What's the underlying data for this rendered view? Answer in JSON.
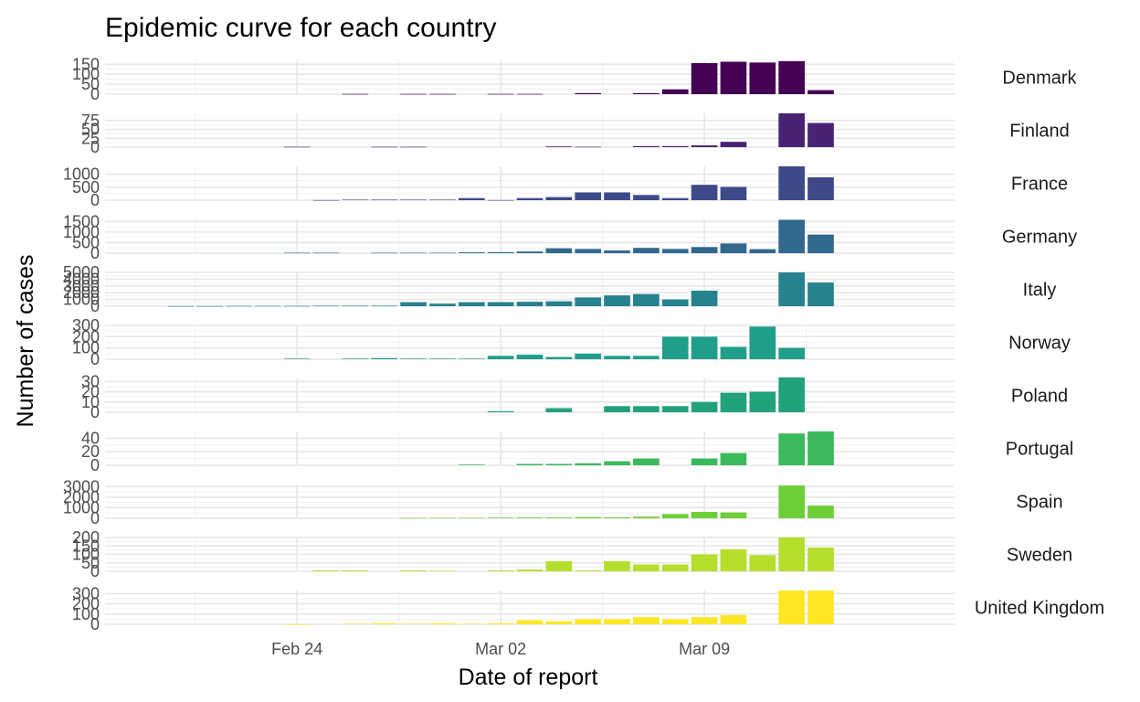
{
  "chart_data": {
    "type": "bar",
    "title": "Epidemic curve for each country",
    "xlabel": "Date of report",
    "ylabel": "Number of cases",
    "x_start": "2020-02-17",
    "x_range": [
      "2020-02-18",
      "2020-03-17"
    ],
    "x_ticks": [
      {
        "date": "2020-02-24",
        "label": "Feb 24"
      },
      {
        "date": "2020-03-02",
        "label": "Mar 02"
      },
      {
        "date": "2020-03-09",
        "label": "Mar 09"
      }
    ],
    "dates": [
      "2020-02-18",
      "2020-02-19",
      "2020-02-20",
      "2020-02-21",
      "2020-02-22",
      "2020-02-23",
      "2020-02-24",
      "2020-02-25",
      "2020-02-26",
      "2020-02-27",
      "2020-02-28",
      "2020-02-29",
      "2020-03-01",
      "2020-03-02",
      "2020-03-03",
      "2020-03-04",
      "2020-03-05",
      "2020-03-06",
      "2020-03-07",
      "2020-03-08",
      "2020-03-09",
      "2020-03-10",
      "2020-03-11",
      "2020-03-12",
      "2020-03-13",
      "2020-03-14",
      "2020-03-15",
      "2020-03-16"
    ],
    "grid": true,
    "facets": "one panel per country, free y scales, strip labels on the right",
    "series": [
      {
        "name": "Denmark",
        "color": "#440154",
        "ylim": [
          0,
          170
        ],
        "y_ticks": [
          0,
          50,
          100,
          150
        ],
        "values": [
          0,
          0,
          0,
          0,
          0,
          0,
          0,
          0,
          1,
          0,
          1,
          1,
          0,
          1,
          1,
          0,
          5,
          0,
          5,
          24,
          156,
          163,
          159,
          166,
          20,
          0,
          0,
          0
        ]
      },
      {
        "name": "Finland",
        "color": "#482374",
        "ylim": [
          0,
          95
        ],
        "y_ticks": [
          0,
          25,
          50,
          75
        ],
        "values": [
          0,
          0,
          0,
          0,
          0,
          0,
          1,
          0,
          0,
          1,
          1,
          0,
          0,
          0,
          0,
          2,
          1,
          0,
          3,
          3,
          5,
          15,
          0,
          95,
          68,
          0,
          0,
          0
        ]
      },
      {
        "name": "France",
        "color": "#3e4989",
        "ylim": [
          0,
          1300
        ],
        "y_ticks": [
          0,
          500,
          1000
        ],
        "values": [
          0,
          0,
          0,
          0,
          0,
          0,
          0,
          4,
          20,
          20,
          20,
          20,
          80,
          4,
          80,
          120,
          300,
          300,
          200,
          80,
          590,
          510,
          0,
          1300,
          880,
          0,
          0,
          0
        ]
      },
      {
        "name": "Germany",
        "color": "#31688e",
        "ylim": [
          0,
          1600
        ],
        "y_ticks": [
          0,
          500,
          1000,
          1500
        ],
        "values": [
          0,
          0,
          0,
          0,
          0,
          0,
          20,
          20,
          0,
          20,
          20,
          20,
          40,
          50,
          80,
          230,
          200,
          130,
          250,
          200,
          290,
          460,
          190,
          1580,
          880,
          0,
          0,
          0
        ]
      },
      {
        "name": "Italy",
        "color": "#26828e",
        "ylim": [
          0,
          5000
        ],
        "y_ticks": [
          0,
          1000,
          2000,
          3000,
          4000,
          5000
        ],
        "values": [
          0,
          0,
          30,
          30,
          40,
          40,
          40,
          80,
          80,
          80,
          600,
          380,
          600,
          610,
          660,
          730,
          1300,
          1600,
          1800,
          1000,
          2300,
          0,
          0,
          5000,
          3500,
          0,
          0,
          0
        ]
      },
      {
        "name": "Norway",
        "color": "#1f9e89",
        "ylim": [
          0,
          300
        ],
        "y_ticks": [
          0,
          100,
          200,
          300
        ],
        "values": [
          0,
          0,
          0,
          0,
          0,
          0,
          5,
          0,
          5,
          10,
          5,
          5,
          5,
          30,
          40,
          20,
          50,
          30,
          30,
          200,
          200,
          110,
          290,
          100,
          0,
          0,
          0,
          0
        ]
      },
      {
        "name": "Poland",
        "color": "#21a27d",
        "ylim": [
          0,
          33
        ],
        "y_ticks": [
          0,
          10,
          20,
          30
        ],
        "values": [
          0,
          0,
          0,
          0,
          0,
          0,
          0,
          0,
          0,
          0,
          0,
          0,
          0,
          1,
          0,
          4,
          0,
          6,
          6,
          6,
          10,
          19,
          20,
          34,
          0,
          0,
          0,
          0
        ]
      },
      {
        "name": "Portugal",
        "color": "#3bba5b",
        "ylim": [
          0,
          50
        ],
        "y_ticks": [
          0,
          20,
          40
        ],
        "values": [
          0,
          0,
          0,
          0,
          0,
          0,
          0,
          0,
          0,
          0,
          0,
          0,
          1,
          0,
          2,
          2,
          3,
          6,
          10,
          0,
          10,
          18,
          0,
          47,
          50,
          0,
          0,
          0
        ]
      },
      {
        "name": "Spain",
        "color": "#6ece38",
        "ylim": [
          0,
          3200
        ],
        "y_ticks": [
          0,
          1000,
          2000,
          3000
        ],
        "values": [
          0,
          0,
          0,
          0,
          0,
          0,
          0,
          0,
          0,
          0,
          30,
          40,
          40,
          60,
          70,
          70,
          110,
          90,
          150,
          400,
          600,
          560,
          0,
          3100,
          1200,
          0,
          0,
          0
        ]
      },
      {
        "name": "Sweden",
        "color": "#b4de2c",
        "ylim": [
          0,
          200
        ],
        "y_ticks": [
          0,
          50,
          100,
          150,
          200
        ],
        "values": [
          0,
          0,
          0,
          0,
          0,
          0,
          0,
          5,
          5,
          0,
          5,
          3,
          0,
          5,
          10,
          60,
          5,
          60,
          40,
          40,
          100,
          130,
          95,
          200,
          140,
          0,
          0,
          0
        ]
      },
      {
        "name": "United Kingdom",
        "color": "#fde725",
        "ylim": [
          0,
          330
        ],
        "y_ticks": [
          0,
          100,
          200,
          300
        ],
        "values": [
          0,
          0,
          0,
          0,
          0,
          0,
          1,
          0,
          5,
          10,
          5,
          10,
          5,
          10,
          40,
          30,
          50,
          50,
          70,
          50,
          70,
          90,
          0,
          330,
          330,
          0,
          0,
          0
        ]
      }
    ]
  }
}
